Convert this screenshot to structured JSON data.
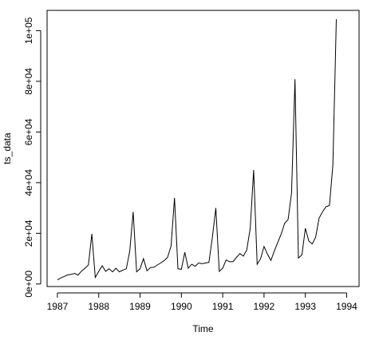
{
  "chart_data": {
    "type": "line",
    "title": "",
    "xlabel": "Time",
    "ylabel": "ts_data",
    "xlim": [
      1986.75,
      1994.3
    ],
    "ylim": [
      -1000,
      108000
    ],
    "x_ticks": [
      1987,
      1988,
      1989,
      1990,
      1991,
      1992,
      1993,
      1994
    ],
    "x_tick_labels": [
      "1987",
      "1988",
      "1989",
      "1990",
      "1991",
      "1992",
      "1993",
      "1994"
    ],
    "y_ticks": [
      0,
      20000,
      40000,
      60000,
      80000,
      100000
    ],
    "y_tick_labels": [
      "0e+00",
      "2e+04",
      "4e+04",
      "6e+04",
      "8e+04",
      "1e+05"
    ],
    "grid": false,
    "legend": "none",
    "series": [
      {
        "start": 1987.0,
        "frequency": 12,
        "color": "#000000",
        "values": [
          1600,
          2400,
          3000,
          3600,
          3800,
          4200,
          3500,
          5100,
          6200,
          7500,
          19800,
          2600,
          5000,
          7200,
          5000,
          6000,
          4800,
          6200,
          4800,
          5500,
          6000,
          13000,
          28500,
          4800,
          6000,
          10000,
          5200,
          6500,
          6600,
          7500,
          8300,
          9200,
          10500,
          15000,
          34000,
          6000,
          5800,
          12500,
          6200,
          7800,
          7000,
          8300,
          8000,
          8300,
          8500,
          18500,
          30000,
          5000,
          6200,
          9500,
          8800,
          8800,
          10500,
          12000,
          11000,
          13500,
          22000,
          45000,
          7800,
          10000,
          14800,
          11800,
          9300,
          13000,
          16500,
          19800,
          24000,
          25500,
          36000,
          80800,
          10200,
          11500,
          22000,
          17000,
          15800,
          18500,
          26000,
          28500,
          30500,
          31000,
          47000,
          104500
        ]
      }
    ]
  }
}
